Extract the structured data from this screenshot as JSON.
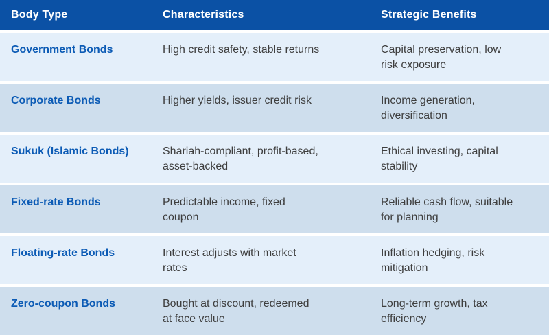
{
  "colors": {
    "header_bg": "#0B51A5",
    "row_light": "#E4EFFA",
    "row_dark": "#CEDEED",
    "link_blue": "#0C5BB5",
    "body_text": "#3E3E3E",
    "separator": "#FFFFFF"
  },
  "table": {
    "columns": {
      "body_type": "Body Type",
      "characteristics": "Characteristics",
      "benefits": "Strategic Benefits"
    },
    "rows": [
      {
        "body_type": "Government Bonds",
        "characteristics": "High credit safety, stable returns",
        "benefits": "Capital preservation, low\nrisk exposure"
      },
      {
        "body_type": "Corporate Bonds",
        "characteristics": "Higher yields, issuer credit risk",
        "benefits": "Income generation,\ndiversification"
      },
      {
        "body_type": "Sukuk (Islamic Bonds)",
        "characteristics": "Shariah-compliant, profit-based,\nasset-backed",
        "benefits": "Ethical investing, capital\nstability"
      },
      {
        "body_type": "Fixed-rate Bonds",
        "characteristics": "Predictable income, fixed\ncoupon",
        "benefits": "Reliable cash flow, suitable\nfor planning"
      },
      {
        "body_type": "Floating-rate Bonds",
        "characteristics": "Interest adjusts with market\nrates",
        "benefits": "Inflation hedging, risk\nmitigation"
      },
      {
        "body_type": "Zero-coupon Bonds",
        "characteristics": "Bought at discount, redeemed\nat face value",
        "benefits": "Long-term growth, tax\nefficiency"
      }
    ]
  }
}
